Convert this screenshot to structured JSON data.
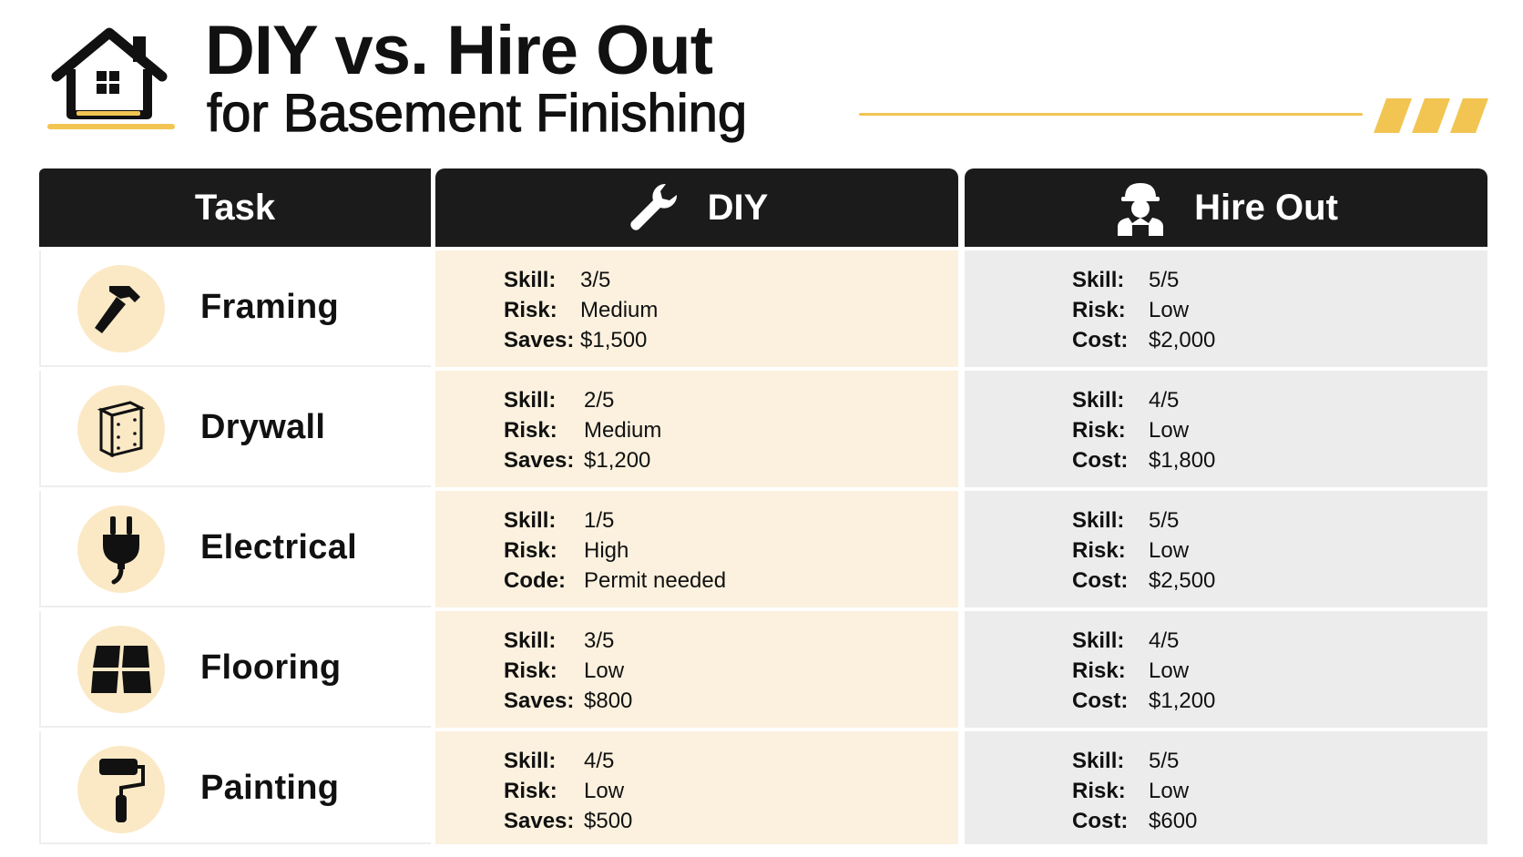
{
  "title": {
    "line1": "DIY vs. Hire Out",
    "line2": "for Basement Finishing"
  },
  "colors": {
    "accent": "#f2c553",
    "header_bg": "#1b1b1b",
    "diy_bg": "#fbf1de",
    "hire_bg": "#ececec",
    "icon_circle": "#fbe9c6"
  },
  "columns": {
    "task": "Task",
    "diy": "DIY",
    "hire": "Hire Out",
    "diy_icon": "wrench-icon",
    "hire_icon": "worker-icon"
  },
  "rows": [
    {
      "task": "Framing",
      "icon": "hammer-icon",
      "diy": [
        {
          "label": "Skill:",
          "value": "3/5"
        },
        {
          "label": "Risk:",
          "value": "Medium"
        },
        {
          "label": "Saves:",
          "value": "$1,500"
        }
      ],
      "hire": [
        {
          "label": "Skill:",
          "value": "5/5"
        },
        {
          "label": "Risk:",
          "value": "Low"
        },
        {
          "label": "Cost:",
          "value": "$2,000"
        }
      ]
    },
    {
      "task": "Drywall",
      "icon": "drywall-panel-icon",
      "diy": [
        {
          "label": "Skill:",
          "value": "2/5"
        },
        {
          "label": "Risk:",
          "value": "Medium"
        },
        {
          "label": "Saves:",
          "value": "$1,200"
        }
      ],
      "hire": [
        {
          "label": "Skill:",
          "value": "4/5"
        },
        {
          "label": "Risk:",
          "value": "Low"
        },
        {
          "label": "Cost:",
          "value": "$1,800"
        }
      ]
    },
    {
      "task": "Electrical",
      "icon": "plug-icon",
      "diy": [
        {
          "label": "Skill:",
          "value": "1/5"
        },
        {
          "label": "Risk:",
          "value": "High"
        },
        {
          "label": "Code:",
          "value": "Permit needed"
        }
      ],
      "hire": [
        {
          "label": "Skill:",
          "value": "5/5"
        },
        {
          "label": "Risk:",
          "value": "Low"
        },
        {
          "label": "Cost:",
          "value": "$2,500"
        }
      ]
    },
    {
      "task": "Flooring",
      "icon": "floor-tiles-icon",
      "diy": [
        {
          "label": "Skill:",
          "value": "3/5"
        },
        {
          "label": "Risk:",
          "value": "Low"
        },
        {
          "label": "Saves:",
          "value": "$800"
        }
      ],
      "hire": [
        {
          "label": "Skill:",
          "value": "4/5"
        },
        {
          "label": "Risk:",
          "value": "Low"
        },
        {
          "label": "Cost:",
          "value": "$1,200"
        }
      ]
    },
    {
      "task": "Painting",
      "icon": "paint-roller-icon",
      "diy": [
        {
          "label": "Skill:",
          "value": "4/5"
        },
        {
          "label": "Risk:",
          "value": "Low"
        },
        {
          "label": "Saves:",
          "value": "$500"
        }
      ],
      "hire": [
        {
          "label": "Skill:",
          "value": "5/5"
        },
        {
          "label": "Risk:",
          "value": "Low"
        },
        {
          "label": "Cost:",
          "value": "$600"
        }
      ]
    }
  ]
}
